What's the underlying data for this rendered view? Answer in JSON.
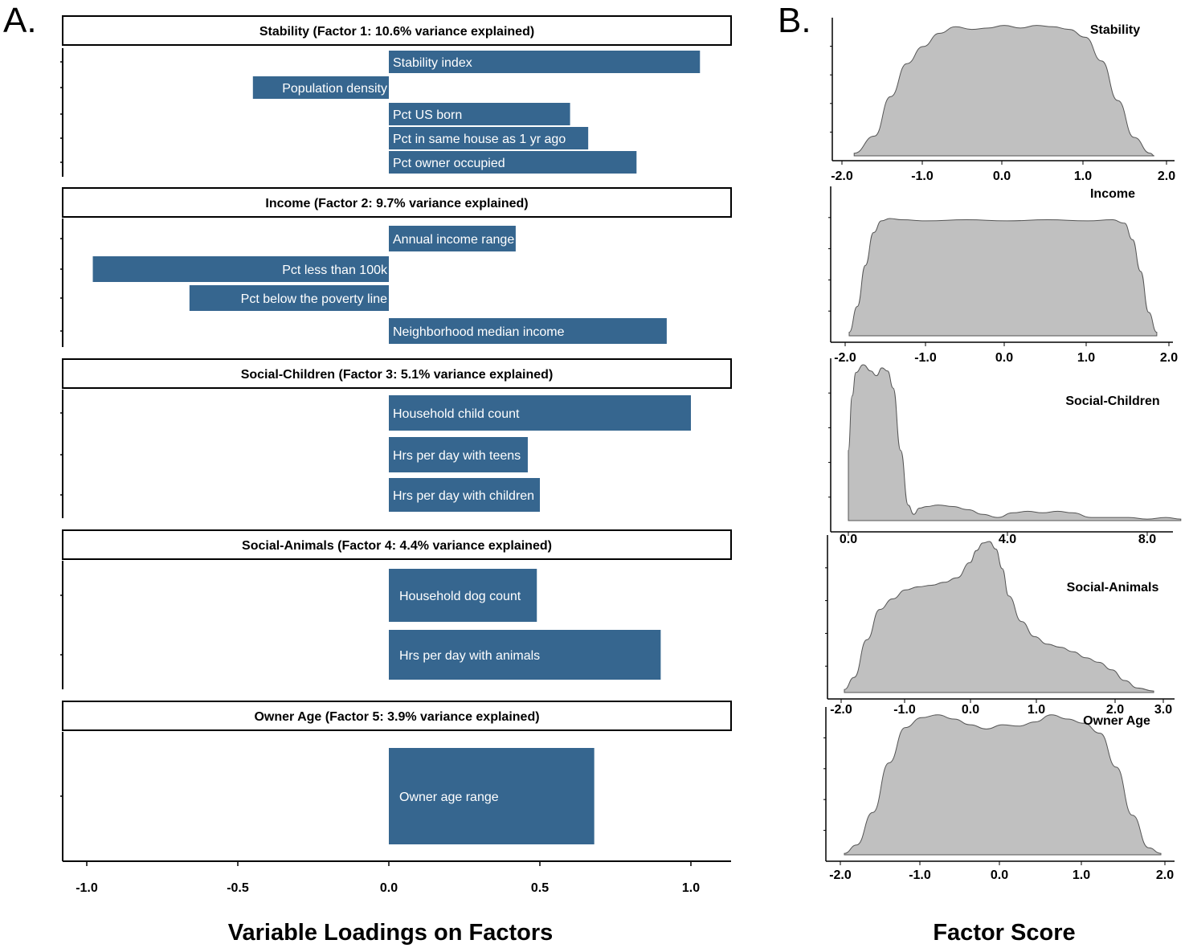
{
  "figure": {
    "label_a": "A.",
    "label_b": "B."
  },
  "chart_data": [
    {
      "type": "bar",
      "orientation": "horizontal",
      "panel": "A",
      "xlabel": "Variable Loadings on Factors",
      "xlim": [
        -1.05,
        1.1
      ],
      "xticks": [
        -1.0,
        -0.5,
        0.0,
        0.5,
        1.0
      ],
      "xtick_labels": [
        "-1.0",
        "-0.5",
        "0.0",
        "0.5",
        "1.0"
      ],
      "color": "#36668f",
      "facets": [
        {
          "title": "Stability (Factor 1: 10.6% variance explained)",
          "bars": [
            {
              "label": "Stability index",
              "value": 1.03
            },
            {
              "label": "Population density",
              "value": -0.45
            },
            {
              "label": "Pct US born",
              "value": 0.6
            },
            {
              "label": "Pct in same house as 1 yr ago",
              "value": 0.66
            },
            {
              "label": "Pct owner occupied",
              "value": 0.82
            }
          ]
        },
        {
          "title": "Income (Factor 2: 9.7% variance explained)",
          "bars": [
            {
              "label": "Annual income range",
              "value": 0.42
            },
            {
              "label": "Pct less than 100k",
              "value": -0.98
            },
            {
              "label": "Pct below the poverty line",
              "value": -0.66
            },
            {
              "label": "Neighborhood median income",
              "value": 0.92
            }
          ]
        },
        {
          "title": "Social-Children (Factor 3: 5.1% variance explained)",
          "bars": [
            {
              "label": "Household child count",
              "value": 1.0
            },
            {
              "label": "Hrs per day with teens",
              "value": 0.46
            },
            {
              "label": "Hrs per day with children",
              "value": 0.5
            }
          ]
        },
        {
          "title": "Social-Animals (Factor 4: 4.4% variance explained)",
          "bars": [
            {
              "label": "Household dog count",
              "value": 0.49
            },
            {
              "label": "Hrs per day with animals",
              "value": 0.9
            }
          ]
        },
        {
          "title": "Owner Age (Factor 5: 3.9% variance explained)",
          "bars": [
            {
              "label": "Owner age range",
              "value": 0.68
            }
          ]
        }
      ]
    },
    {
      "type": "area",
      "subtype": "density",
      "panel": "B",
      "xlabel": "Factor Score",
      "fill": "#c0c0c0",
      "stroke": "#555555",
      "panels": [
        {
          "title": "Stability",
          "xlim": [
            -1.95,
            2.0
          ],
          "xticks": [
            "-2.0",
            "-1.0",
            "0.0",
            "1.0",
            "2.0"
          ],
          "ymax": 1.0,
          "x": [
            -1.85,
            -1.6,
            -1.4,
            -1.2,
            -1.0,
            -0.8,
            -0.6,
            -0.4,
            -0.2,
            0.0,
            0.2,
            0.4,
            0.6,
            0.8,
            1.0,
            1.2,
            1.4,
            1.6,
            1.8,
            1.85
          ],
          "y": [
            0.02,
            0.15,
            0.45,
            0.7,
            0.83,
            0.93,
            0.98,
            0.96,
            0.97,
            0.99,
            0.97,
            0.99,
            0.98,
            0.96,
            0.9,
            0.72,
            0.42,
            0.14,
            0.02,
            0.0
          ]
        },
        {
          "title": "Income",
          "xlim": [
            -2.1,
            2.0
          ],
          "xticks": [
            "-2.0",
            "-1.0",
            "0.0",
            "1.0",
            "2.0"
          ],
          "ymax": 1.0,
          "x": [
            -1.95,
            -1.85,
            -1.75,
            -1.65,
            -1.55,
            -1.45,
            -1.3,
            -1.0,
            -0.5,
            0.0,
            0.5,
            1.0,
            1.3,
            1.45,
            1.55,
            1.65,
            1.75,
            1.85
          ],
          "y": [
            0.03,
            0.25,
            0.6,
            0.88,
            0.98,
            1.0,
            0.99,
            0.98,
            0.99,
            0.98,
            0.99,
            0.98,
            0.99,
            0.96,
            0.82,
            0.55,
            0.2,
            0.03
          ]
        },
        {
          "title": "Social-Children",
          "xlim": [
            -0.2,
            9.0
          ],
          "xticks": [
            "0.0",
            "4.0",
            "8.0"
          ],
          "ymax": 1.0,
          "x": [
            0.0,
            0.1,
            0.2,
            0.4,
            0.6,
            0.75,
            0.9,
            1.05,
            1.2,
            1.4,
            1.6,
            1.75,
            1.9,
            2.1,
            2.4,
            2.8,
            3.2,
            3.6,
            4.0,
            4.4,
            4.8,
            5.2,
            5.6,
            6.0,
            6.5,
            7.0,
            7.5,
            8.0,
            8.5,
            8.9
          ],
          "y": [
            0.45,
            0.8,
            0.95,
            1.0,
            0.96,
            0.93,
            0.98,
            0.96,
            0.85,
            0.45,
            0.1,
            0.04,
            0.08,
            0.09,
            0.1,
            0.09,
            0.07,
            0.04,
            0.02,
            0.05,
            0.06,
            0.05,
            0.06,
            0.05,
            0.02,
            0.02,
            0.02,
            0.01,
            0.02,
            0.01
          ]
        },
        {
          "title": "Social-Animals",
          "xlim": [
            -2.1,
            3.15
          ],
          "xticks": [
            "-2.0",
            "-1.0",
            "0.0",
            "1.0",
            "2.0",
            "3.0"
          ],
          "ymax": 1.0,
          "x": [
            -1.95,
            -1.8,
            -1.6,
            -1.4,
            -1.2,
            -1.0,
            -0.8,
            -0.6,
            -0.4,
            -0.2,
            0.0,
            0.1,
            0.2,
            0.3,
            0.4,
            0.5,
            0.6,
            0.8,
            1.0,
            1.2,
            1.4,
            1.6,
            1.8,
            2.0,
            2.2,
            2.4,
            2.6,
            2.85
          ],
          "y": [
            0.02,
            0.1,
            0.35,
            0.55,
            0.62,
            0.68,
            0.7,
            0.71,
            0.73,
            0.76,
            0.86,
            0.94,
            0.99,
            1.0,
            0.95,
            0.82,
            0.64,
            0.47,
            0.37,
            0.32,
            0.3,
            0.27,
            0.23,
            0.2,
            0.15,
            0.08,
            0.03,
            0.01
          ]
        },
        {
          "title": "Owner Age",
          "xlim": [
            -2.05,
            2.05
          ],
          "xticks": [
            "-2.0",
            "-1.0",
            "0.0",
            "1.0",
            "2.0"
          ],
          "ymax": 1.0,
          "x": [
            -1.95,
            -1.8,
            -1.6,
            -1.4,
            -1.2,
            -1.0,
            -0.8,
            -0.6,
            -0.4,
            -0.2,
            0.0,
            0.2,
            0.4,
            0.6,
            0.8,
            1.0,
            1.2,
            1.4,
            1.6,
            1.8,
            1.95
          ],
          "y": [
            0.01,
            0.07,
            0.3,
            0.65,
            0.9,
            0.97,
            0.99,
            0.96,
            0.92,
            0.89,
            0.92,
            0.91,
            0.94,
            0.99,
            0.96,
            0.93,
            0.86,
            0.62,
            0.28,
            0.05,
            0.01
          ]
        }
      ]
    }
  ]
}
